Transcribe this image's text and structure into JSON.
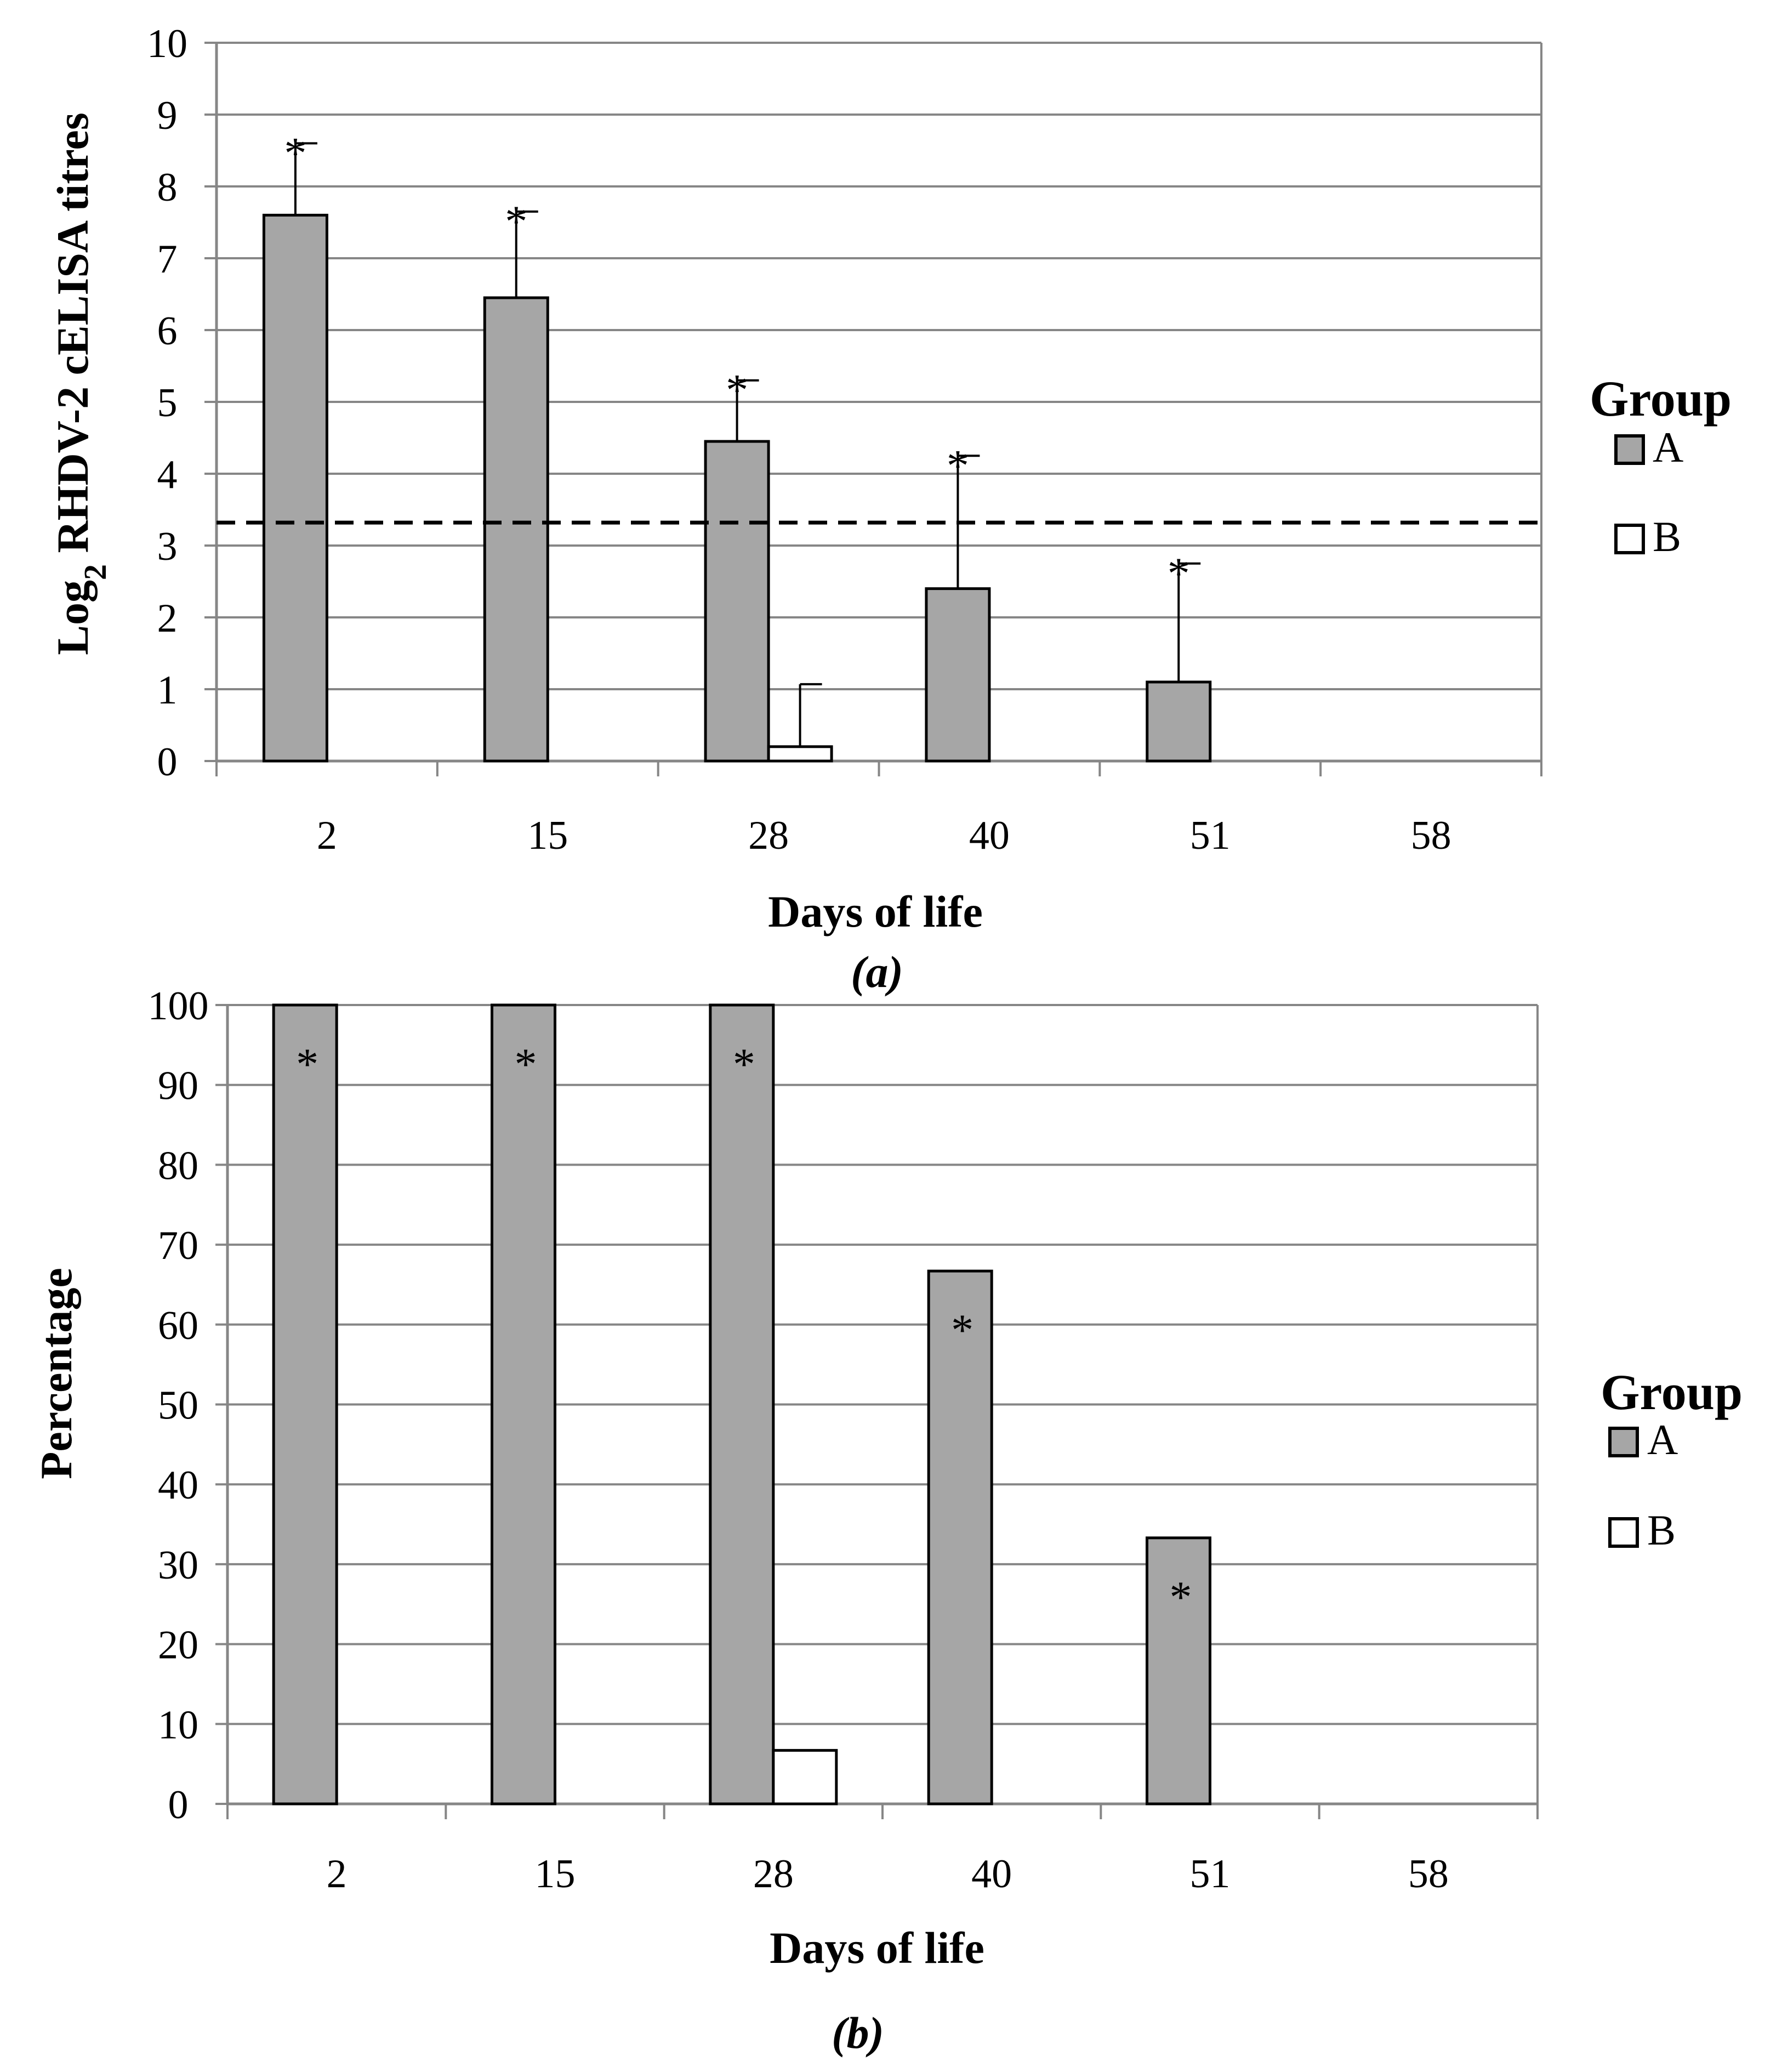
{
  "chart_data": [
    {
      "type": "bar",
      "caption": "(a)",
      "ylabel_main": "Log",
      "ylabel_sub": "2",
      "ylabel_rest": " RHDV-2 cELISA titres",
      "xlabel": "Days of life",
      "categories": [
        "2",
        "15",
        "28",
        "40",
        "51",
        "58"
      ],
      "ylim": [
        0,
        10
      ],
      "yticks": [
        "0",
        "1",
        "2",
        "3",
        "4",
        "5",
        "6",
        "7",
        "8",
        "9",
        "10"
      ],
      "grid": true,
      "threshold": 3.32,
      "legend": {
        "title": "Group",
        "position": "right"
      },
      "series": [
        {
          "name": "A",
          "color": "#a6a6a6",
          "values": [
            7.6,
            6.45,
            4.45,
            2.4,
            1.1,
            0
          ],
          "errors": [
            1.0,
            1.2,
            0.85,
            1.85,
            1.65,
            0
          ],
          "annotations": [
            "*",
            "*",
            "*",
            "*",
            "*",
            ""
          ]
        },
        {
          "name": "B",
          "color": "#ffffff",
          "values": [
            0,
            0,
            0.2,
            0,
            0,
            0
          ],
          "errors": [
            0,
            0,
            0.87,
            0,
            0,
            0
          ],
          "annotations": [
            "",
            "",
            "",
            "",
            "",
            ""
          ]
        }
      ]
    },
    {
      "type": "bar",
      "caption": "(b)",
      "ylabel": "Percentage",
      "xlabel": "Days of life",
      "categories": [
        "2",
        "15",
        "28",
        "40",
        "51",
        "58"
      ],
      "ylim": [
        0,
        100
      ],
      "yticks": [
        "0",
        "10",
        "20",
        "30",
        "40",
        "50",
        "60",
        "70",
        "80",
        "90",
        "100"
      ],
      "grid": true,
      "legend": {
        "title": "Group",
        "position": "right"
      },
      "series": [
        {
          "name": "A",
          "color": "#a6a6a6",
          "values": [
            100,
            100,
            100,
            66.7,
            33.3,
            0
          ],
          "annotations": [
            "*",
            "*",
            "*",
            "*",
            "*",
            ""
          ]
        },
        {
          "name": "B",
          "color": "#ffffff",
          "values": [
            0,
            0,
            6.7,
            0,
            0,
            0
          ],
          "annotations": [
            "",
            "",
            "",
            "",
            "",
            ""
          ]
        }
      ]
    }
  ]
}
